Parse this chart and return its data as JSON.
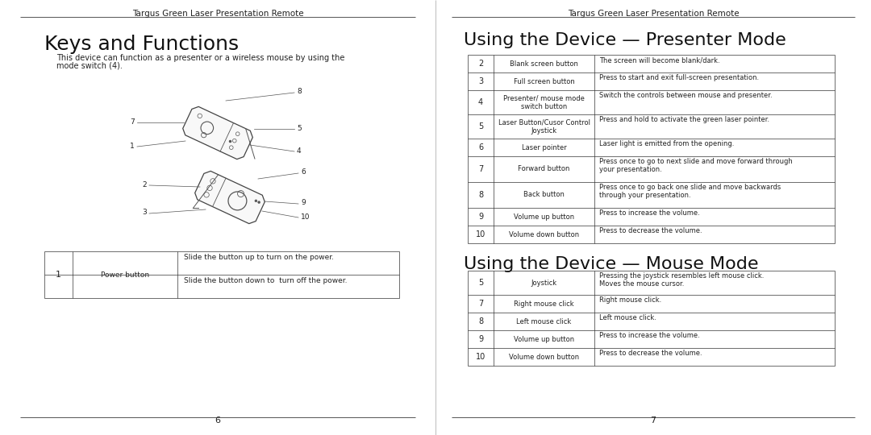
{
  "header": "Targus Green Laser Presentation Remote",
  "bg_color": "#ffffff",
  "left_page": {
    "title": "Keys and Functions",
    "body_text": "This device can function as a presenter or a wireless mouse by using the\nmode switch (4).",
    "page_num": "6",
    "table_num": "1",
    "table_key": "Power button",
    "table_row1": "Slide the button up to turn on the power.",
    "table_row2": "Slide the button down to  turn off the power."
  },
  "right_page": {
    "title1": "Using the Device — Presenter Mode",
    "title2": "Using the Device — Mouse Mode",
    "page_num": "7",
    "presenter_table": [
      [
        "2",
        "Blank screen button",
        "The screen will become blank/dark."
      ],
      [
        "3",
        "Full screen button",
        "Press to start and exit full-screen presentation."
      ],
      [
        "4",
        "Presenter/ mouse mode\nswitch button",
        "Switch the controls between mouse and presenter."
      ],
      [
        "5",
        "Laser Button/Cusor Control\nJoystick",
        "Press and hold to activate the green laser pointer."
      ],
      [
        "6",
        "Laser pointer",
        "Laser light is emitted from the opening."
      ],
      [
        "7",
        "Forward button",
        "Press once to go to next slide and move forward through\nyour presentation."
      ],
      [
        "8",
        "Back button",
        "Press once to go back one slide and move backwards\nthrough your presentation."
      ],
      [
        "9",
        "Volume up button",
        "Press to increase the volume."
      ],
      [
        "10",
        "Volume down button",
        "Press to decrease the volume."
      ]
    ],
    "mouse_table": [
      [
        "5",
        "Joystick",
        "Pressing the joystick resembles left mouse click.\nMoves the mouse cursor."
      ],
      [
        "7",
        "Right mouse click",
        "Right mouse click."
      ],
      [
        "8",
        "Left mouse click",
        "Left mouse click."
      ],
      [
        "9",
        "Volume up button",
        "Press to increase the volume."
      ],
      [
        "10",
        "Volume down button",
        "Press to decrease the volume."
      ]
    ]
  }
}
